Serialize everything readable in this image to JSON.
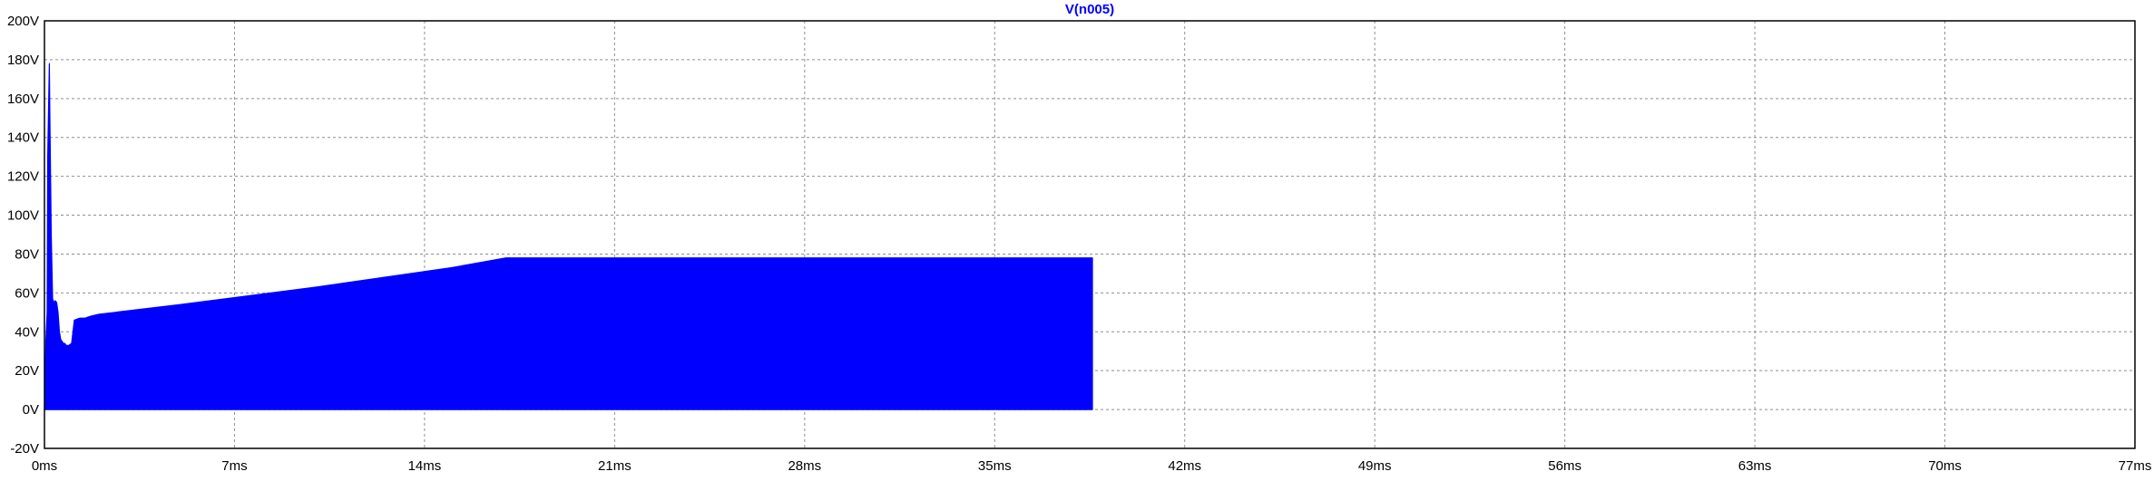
{
  "chart_data": {
    "type": "area",
    "title": "V(n005)",
    "xlabel": "",
    "ylabel": "",
    "x_unit": "ms",
    "y_unit": "V",
    "xlim": [
      0,
      77
    ],
    "ylim": [
      -20,
      200
    ],
    "x_ticks": [
      0,
      7,
      14,
      21,
      28,
      35,
      42,
      49,
      56,
      63,
      70,
      77
    ],
    "x_tick_labels": [
      "0ms",
      "7ms",
      "14ms",
      "21ms",
      "28ms",
      "35ms",
      "42ms",
      "49ms",
      "56ms",
      "63ms",
      "70ms",
      "77ms"
    ],
    "y_ticks": [
      -20,
      0,
      20,
      40,
      60,
      80,
      100,
      120,
      140,
      160,
      180,
      200
    ],
    "y_tick_labels": [
      "-20V",
      "0V",
      "20V",
      "40V",
      "60V",
      "80V",
      "100V",
      "120V",
      "140V",
      "160V",
      "180V",
      "200V"
    ],
    "grid": true,
    "series": [
      {
        "name": "V(n005)",
        "color": "#0000ff",
        "lower_envelope": {
          "x": [
            0,
            38.6
          ],
          "y": [
            0,
            0
          ]
        },
        "upper_envelope": {
          "x": [
            0,
            0.05,
            0.1,
            0.12,
            0.18,
            0.2,
            0.25,
            0.3,
            0.35,
            0.4,
            0.45,
            0.5,
            0.55,
            0.6,
            0.65,
            0.7,
            0.75,
            0.8,
            0.9,
            1.0,
            1.1,
            1.3,
            1.5,
            1.7,
            2.0,
            5.0,
            10.0,
            15.0,
            17.0,
            20.0,
            25.0,
            30.0,
            35.0,
            38.6
          ],
          "y": [
            0,
            35,
            50,
            130,
            178,
            150,
            90,
            57,
            55,
            56,
            55,
            50,
            40,
            36,
            35,
            34,
            34,
            33,
            33,
            34,
            46,
            47,
            47,
            48,
            49,
            54,
            63,
            73,
            78,
            78,
            78,
            78,
            78,
            78
          ]
        },
        "fill": "solid",
        "end_x": 38.6
      }
    ]
  }
}
